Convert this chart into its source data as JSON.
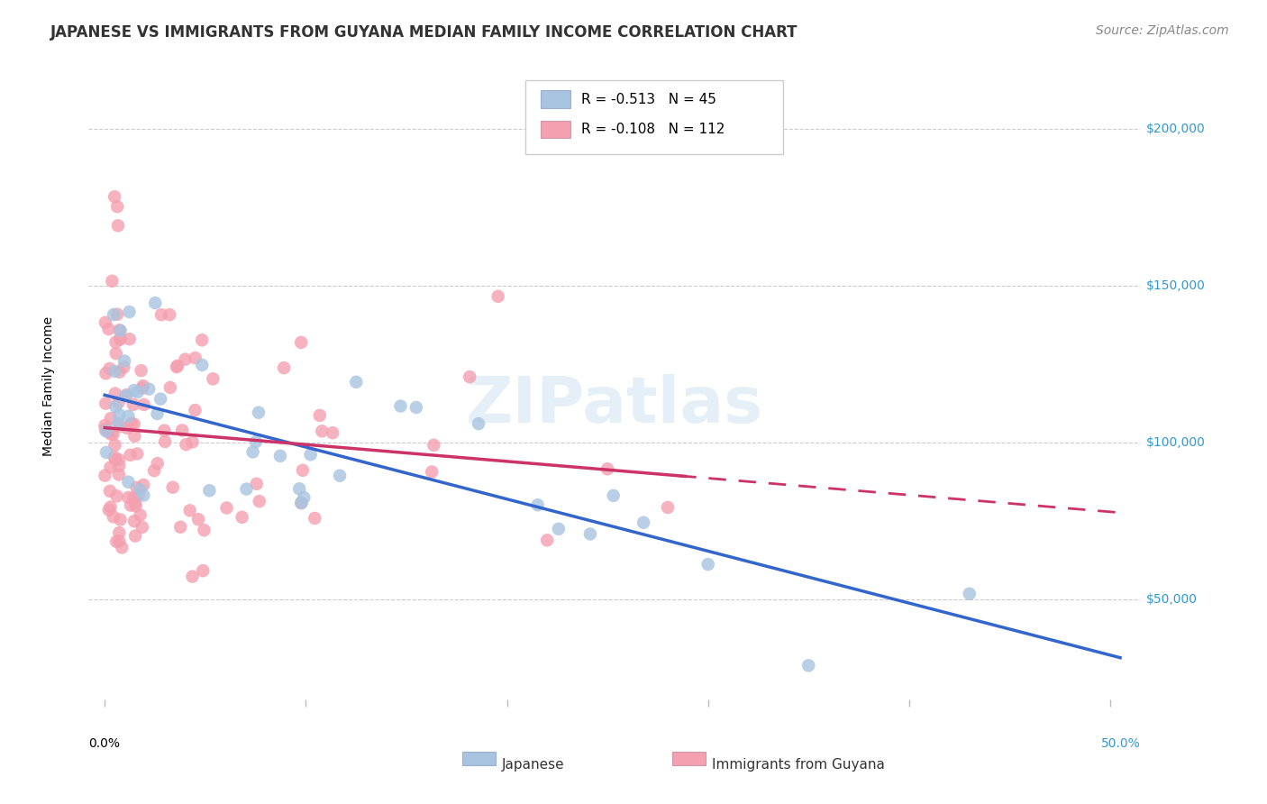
{
  "title": "JAPANESE VS IMMIGRANTS FROM GUYANA MEDIAN FAMILY INCOME CORRELATION CHART",
  "source": "Source: ZipAtlas.com",
  "ylabel": "Median Family Income",
  "watermark": "ZIPatlas",
  "legend_japanese_R": -0.513,
  "legend_japanese_N": 45,
  "legend_guyana_R": -0.108,
  "legend_guyana_N": 112,
  "background_color": "#ffffff",
  "grid_color": "#cccccc",
  "japanese_color": "#a8c4e0",
  "japanese_line_color": "#3366cc",
  "guyana_color": "#f4a0b0",
  "guyana_line_color": "#cc3366",
  "right_label_color": "#3399cc",
  "title_fontsize": 12,
  "source_fontsize": 10,
  "axis_label_fontsize": 10,
  "tick_label_fontsize": 10,
  "legend_fontsize": 11,
  "watermark_text": "ZIPatlas"
}
